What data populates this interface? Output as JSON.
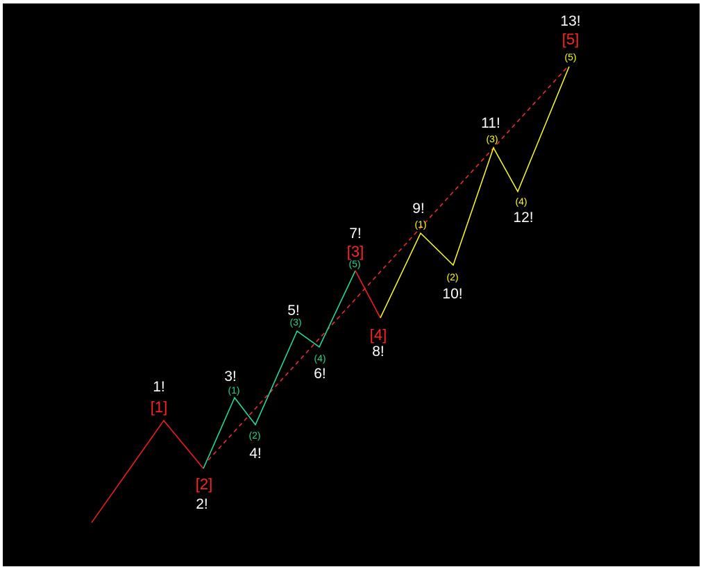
{
  "colors": {
    "background": "#000000",
    "primary_wave": "#ff1a1a",
    "green_wave": "#19e6a6",
    "yellow_wave": "#ffff1a",
    "label_count": "#ffffff",
    "label_primary": "#ff2222",
    "label_minor_green": "#19d98c",
    "label_minor_yellow": "#ffff00",
    "channel_line": "#ff2a2a"
  },
  "diagram": {
    "count_labels": [
      "1!",
      "2!",
      "3!",
      "4!",
      "5!",
      "6!",
      "7!",
      "8!",
      "9!",
      "10!",
      "11!",
      "12!",
      "13!"
    ],
    "primary_labels": [
      "[1]",
      "[2]",
      "[3]",
      "[4]",
      "[5]"
    ],
    "minor_labels_green": [
      "(1)",
      "(2)",
      "(3)",
      "(4)",
      "(5)"
    ],
    "minor_labels_yellow": [
      "(1)",
      "(2)",
      "(3)",
      "(4)",
      "(5)"
    ]
  }
}
